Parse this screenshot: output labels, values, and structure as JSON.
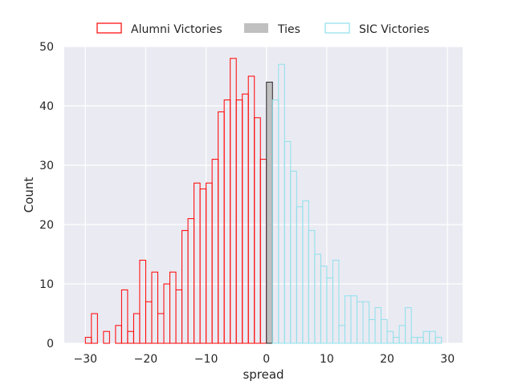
{
  "chart_data": {
    "type": "histogram",
    "xlabel": "spread",
    "ylabel": "Count",
    "xlim": [
      -33.5,
      32.5
    ],
    "ylim": [
      0,
      50
    ],
    "xticks": [
      -30,
      -20,
      -10,
      0,
      10,
      20,
      30
    ],
    "yticks": [
      0,
      10,
      20,
      30,
      40,
      50
    ],
    "xtick_labels": [
      "−30",
      "−20",
      "−10",
      "0",
      "10",
      "20",
      "30"
    ],
    "ytick_labels": [
      "0",
      "10",
      "20",
      "30",
      "40",
      "50"
    ],
    "grid": true,
    "legend_position": "top-center, outside plot",
    "bin_width": 1,
    "series": [
      {
        "name": "Alumni Victories",
        "style": "outline",
        "color": "#ff0000",
        "bins": [
          {
            "x": -30,
            "count": 1
          },
          {
            "x": -29,
            "count": 5
          },
          {
            "x": -28,
            "count": 0
          },
          {
            "x": -27,
            "count": 2
          },
          {
            "x": -26,
            "count": 0
          },
          {
            "x": -25,
            "count": 3
          },
          {
            "x": -24,
            "count": 9
          },
          {
            "x": -23,
            "count": 2
          },
          {
            "x": -22,
            "count": 5
          },
          {
            "x": -21,
            "count": 14
          },
          {
            "x": -20,
            "count": 7
          },
          {
            "x": -19,
            "count": 12
          },
          {
            "x": -18,
            "count": 5
          },
          {
            "x": -17,
            "count": 10
          },
          {
            "x": -16,
            "count": 12
          },
          {
            "x": -15,
            "count": 9
          },
          {
            "x": -14,
            "count": 19
          },
          {
            "x": -13,
            "count": 21
          },
          {
            "x": -12,
            "count": 27
          },
          {
            "x": -11,
            "count": 26
          },
          {
            "x": -10,
            "count": 27
          },
          {
            "x": -9,
            "count": 31
          },
          {
            "x": -8,
            "count": 39
          },
          {
            "x": -7,
            "count": 41
          },
          {
            "x": -6,
            "count": 48
          },
          {
            "x": -5,
            "count": 41
          },
          {
            "x": -4,
            "count": 42
          },
          {
            "x": -3,
            "count": 45
          },
          {
            "x": -2,
            "count": 38
          },
          {
            "x": -1,
            "count": 31
          }
        ]
      },
      {
        "name": "Ties",
        "style": "filled",
        "color": "#c0c0c0",
        "bins": [
          {
            "x": 0,
            "count": 44
          }
        ]
      },
      {
        "name": "SIC Victories",
        "style": "outline",
        "color": "#8ee0ec",
        "bins": [
          {
            "x": 1,
            "count": 41
          },
          {
            "x": 2,
            "count": 47
          },
          {
            "x": 3,
            "count": 34
          },
          {
            "x": 4,
            "count": 29
          },
          {
            "x": 5,
            "count": 23
          },
          {
            "x": 6,
            "count": 24
          },
          {
            "x": 7,
            "count": 19
          },
          {
            "x": 8,
            "count": 15
          },
          {
            "x": 9,
            "count": 13
          },
          {
            "x": 10,
            "count": 11
          },
          {
            "x": 11,
            "count": 14
          },
          {
            "x": 12,
            "count": 3
          },
          {
            "x": 13,
            "count": 8
          },
          {
            "x": 14,
            "count": 8
          },
          {
            "x": 15,
            "count": 7
          },
          {
            "x": 16,
            "count": 7
          },
          {
            "x": 17,
            "count": 4
          },
          {
            "x": 18,
            "count": 6
          },
          {
            "x": 19,
            "count": 4
          },
          {
            "x": 20,
            "count": 2
          },
          {
            "x": 21,
            "count": 1
          },
          {
            "x": 22,
            "count": 3
          },
          {
            "x": 23,
            "count": 6
          },
          {
            "x": 24,
            "count": 1
          },
          {
            "x": 25,
            "count": 1
          },
          {
            "x": 26,
            "count": 2
          },
          {
            "x": 27,
            "count": 2
          },
          {
            "x": 28,
            "count": 1
          }
        ]
      }
    ]
  },
  "colors": {
    "plot_background": "#eaeaf2",
    "grid": "#ffffff",
    "text": "#262626",
    "alumni": "#ff0000",
    "ties": "#c0c0c0",
    "sic": "#8ee0ec"
  }
}
